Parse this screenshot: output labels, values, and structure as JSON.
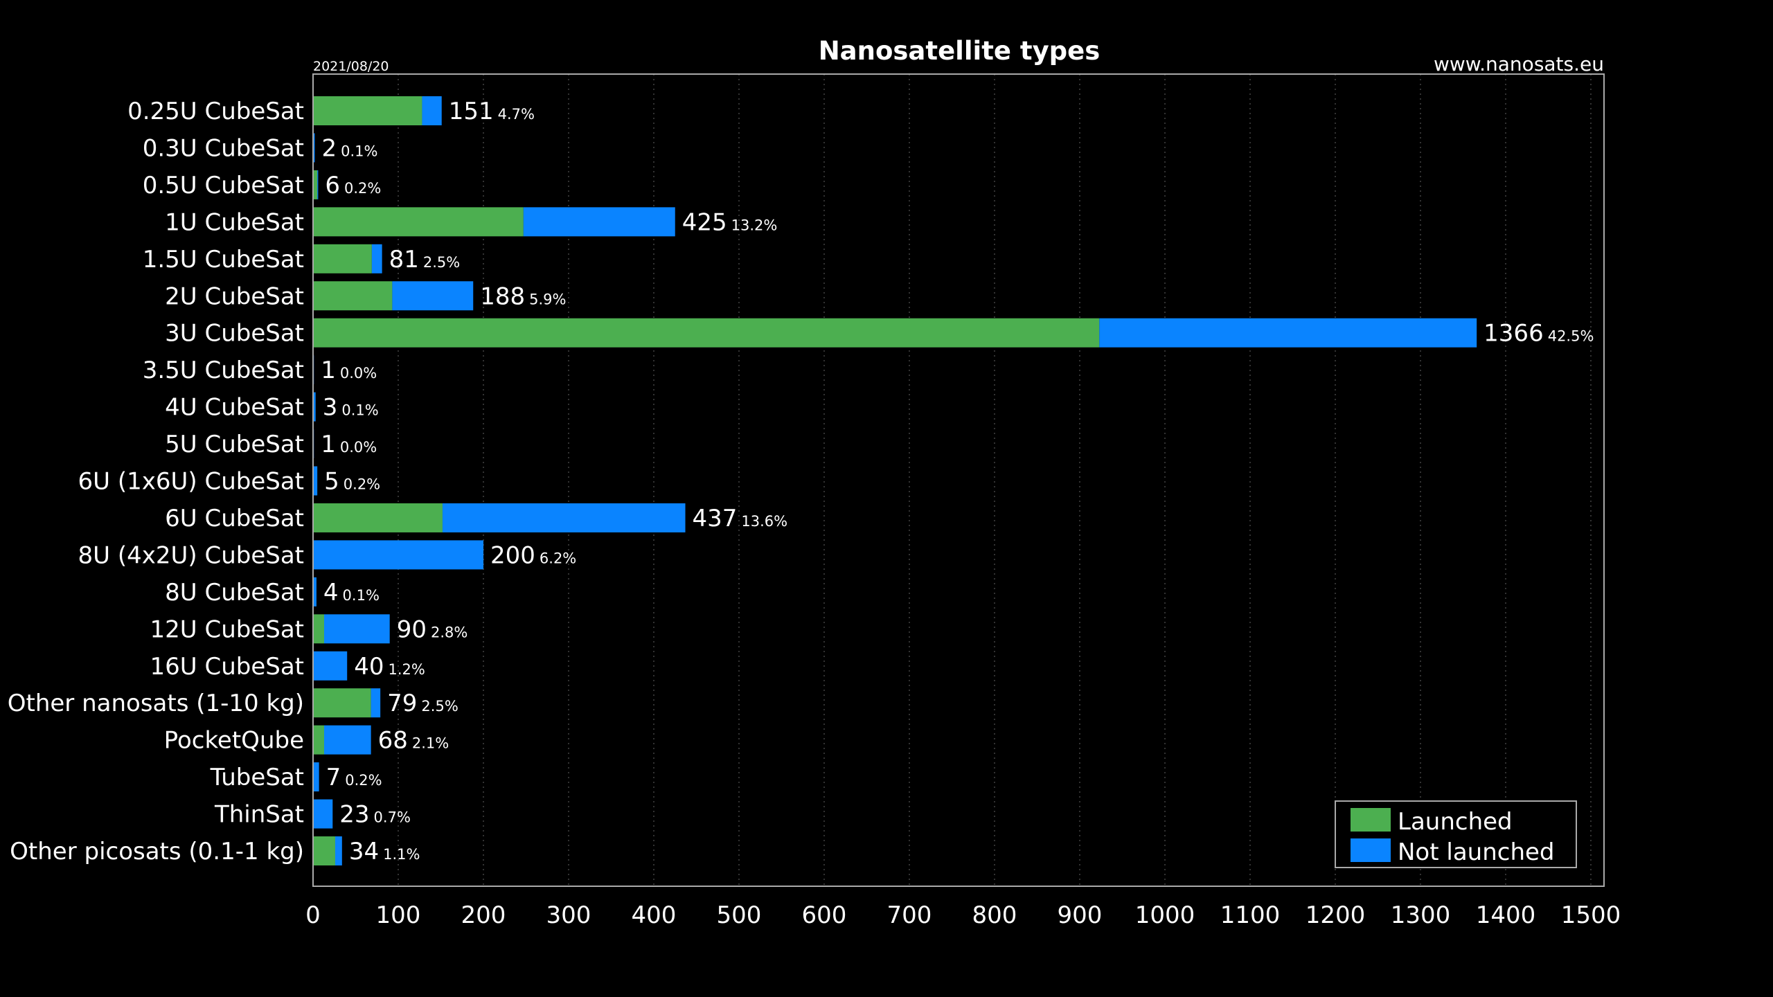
{
  "colors": {
    "launched": "#4caf50",
    "not_launched": "#0a84ff",
    "background": "#000000",
    "grid": "#444444",
    "frame": "#aaaaaa"
  },
  "chart_data": {
    "type": "bar",
    "orientation": "horizontal",
    "stacked": true,
    "title": "Nanosatellite types",
    "date": "2021/08/20",
    "source": "www.nanosats.eu",
    "xlim": [
      0,
      1520
    ],
    "xticks": [
      0,
      100,
      200,
      300,
      400,
      500,
      600,
      700,
      800,
      900,
      1000,
      1100,
      1200,
      1300,
      1400,
      1500
    ],
    "grid": "vertical dotted",
    "legend_position": "bottom-right",
    "categories": [
      "0.25U CubeSat",
      "0.3U CubeSat",
      "0.5U CubeSat",
      "1U CubeSat",
      "1.5U CubeSat",
      "2U CubeSat",
      "3U CubeSat",
      "3.5U CubeSat",
      "4U CubeSat",
      "5U CubeSat",
      "6U (1x6U) CubeSat",
      "6U CubeSat",
      "8U (4x2U) CubeSat",
      "8U CubeSat",
      "12U CubeSat",
      "16U CubeSat",
      "Other nanosats (1-10 kg)",
      "PocketQube",
      "TubeSat",
      "ThinSat",
      "Other picosats (0.1-1 kg)"
    ],
    "series": [
      {
        "name": "Launched",
        "color": "#4caf50",
        "values": [
          128,
          0,
          5,
          247,
          69,
          93,
          923,
          0,
          0,
          0,
          0,
          152,
          0,
          0,
          13,
          0,
          68,
          13,
          0,
          0,
          26
        ]
      },
      {
        "name": "Not launched",
        "color": "#0a84ff",
        "values": [
          23,
          2,
          1,
          178,
          12,
          95,
          443,
          1,
          3,
          1,
          5,
          285,
          200,
          4,
          77,
          40,
          11,
          55,
          7,
          23,
          8
        ]
      }
    ],
    "totals": [
      151,
      2,
      6,
      425,
      81,
      188,
      1366,
      1,
      3,
      1,
      5,
      437,
      200,
      4,
      90,
      40,
      79,
      68,
      7,
      23,
      34
    ],
    "percent_labels": [
      "4.7%",
      "0.1%",
      "0.2%",
      "13.2%",
      "2.5%",
      "5.9%",
      "42.5%",
      "0.0%",
      "0.1%",
      "0.0%",
      "0.2%",
      "13.6%",
      "6.2%",
      "0.1%",
      "2.8%",
      "1.2%",
      "2.5%",
      "2.1%",
      "0.2%",
      "0.7%",
      "1.1%"
    ]
  }
}
